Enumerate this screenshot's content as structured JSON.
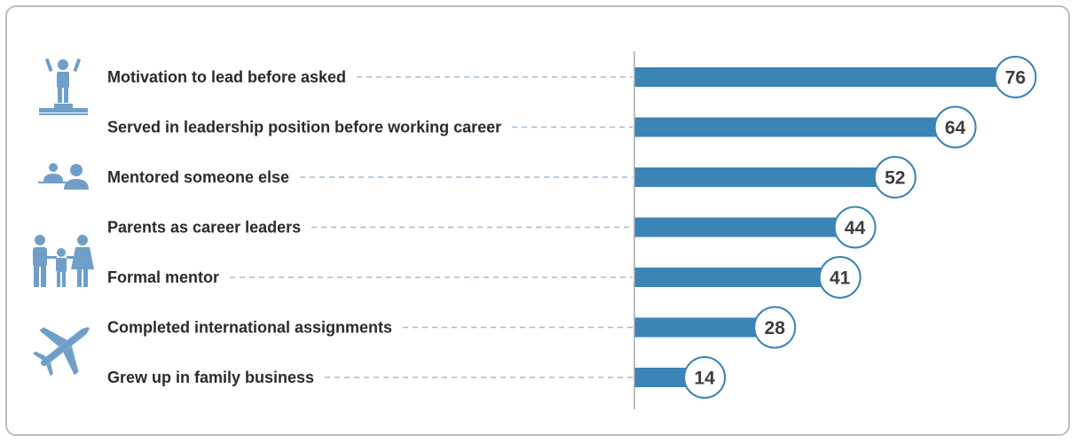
{
  "colors": {
    "bar": "#3a84b6",
    "icon": "#6f9fc9",
    "dash": "#9dbbd6",
    "axis": "#a8a8a8",
    "circle_border": "#3a84b6",
    "frame_border": "#b8bec4"
  },
  "icons": [
    "podium-person-icon",
    "mentoring-people-icon",
    "family-icon",
    "airplane-icon"
  ],
  "chart_data": {
    "type": "bar",
    "orientation": "horizontal",
    "categories": [
      "Motivation to lead before asked",
      "Served in leadership position before working career",
      "Mentored someone else",
      "Parents as career leaders",
      "Formal mentor",
      "Completed international assignments",
      "Grew up in family business"
    ],
    "values": [
      76,
      64,
      52,
      44,
      41,
      28,
      14
    ],
    "title": "",
    "xlabel": "",
    "ylabel": "",
    "xlim": [
      0,
      80
    ],
    "grid": false,
    "legend": "none",
    "data_labels": true
  }
}
